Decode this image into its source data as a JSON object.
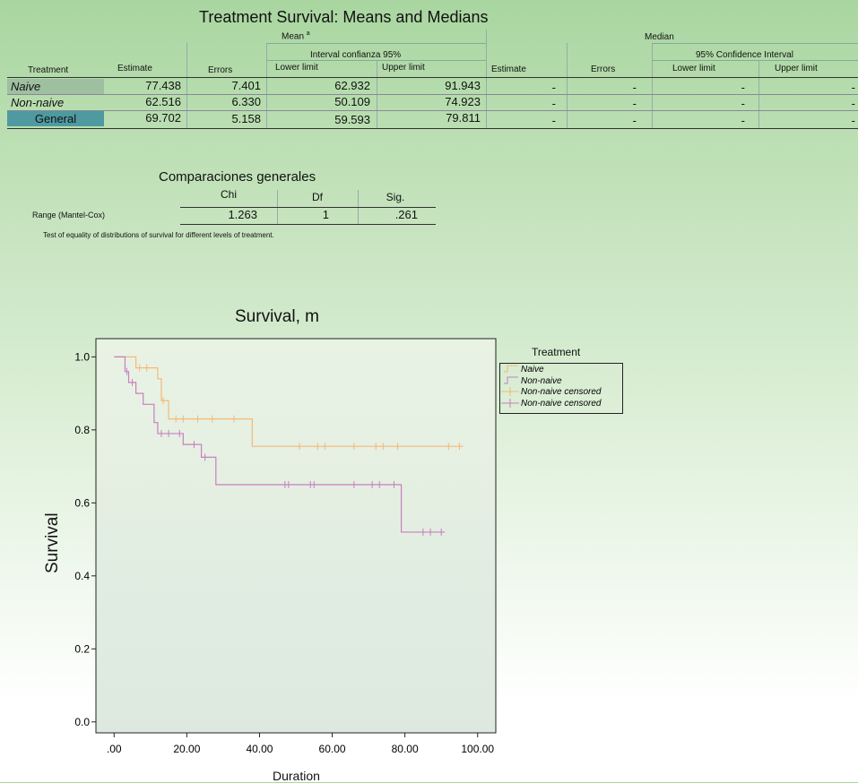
{
  "means_table": {
    "title": "Treatment Survival: Means and Medians",
    "group_mean": "Mean",
    "footnote_mark": "a",
    "group_median": "Median",
    "ci_mean_label": "Interval confianza 95%",
    "ci_median_label": "95% Confidence Interval",
    "columns": [
      "Treatment",
      "Estimate",
      "Errors",
      "Lower limit",
      "Upper limit",
      "Estimate",
      "Errors",
      "Lower limit",
      "Upper limit"
    ],
    "rows": [
      {
        "treatment": "Naive",
        "mean_estimate": "77.438",
        "mean_errors": "7.401",
        "mean_lower": "62.932",
        "mean_upper": "91.943",
        "median_estimate": "-",
        "median_errors": "-",
        "median_lower": "-",
        "median_upper": "-"
      },
      {
        "treatment": "Non-naive",
        "mean_estimate": "62.516",
        "mean_errors": "6.330",
        "mean_lower": "50.109",
        "mean_upper": "74.923",
        "median_estimate": "-",
        "median_errors": "-",
        "median_lower": "-",
        "median_upper": "-"
      },
      {
        "treatment": "General",
        "mean_estimate": "69.702",
        "mean_errors": "5.158",
        "mean_lower": "59.593",
        "mean_upper": "79.811",
        "median_estimate": "-",
        "median_errors": "-",
        "median_lower": "-",
        "median_upper": "-"
      }
    ]
  },
  "comparisons": {
    "title": "Comparaciones generales",
    "columns": [
      "Chi",
      "Df",
      "Sig."
    ],
    "row_label": "Range (Mantel-Cox)",
    "values": [
      "1.263",
      "1",
      ".261"
    ],
    "note": "Test of equality of distributions of survival for different levels of treatment."
  },
  "colors": {
    "naive": "#f5b877",
    "non_naive": "#c77fbf",
    "plot_bg_top": "#e9f3e4",
    "plot_bg_bottom": "#dde9e0",
    "highlight_cell": "#9fbfa1",
    "general_cell": "#4f9aa0"
  },
  "chart_data": {
    "type": "line",
    "subtype": "kaplan-meier step",
    "title": "Survival, m",
    "xlabel": "Duration",
    "ylabel": "Survival",
    "xlim": [
      -5,
      105
    ],
    "ylim": [
      -0.03,
      1.05
    ],
    "xticks": [
      0,
      20,
      40,
      60,
      80,
      100
    ],
    "xtick_labels": [
      ".00",
      "20.00",
      "40.00",
      "60.00",
      "80.00",
      "100.00"
    ],
    "yticks": [
      0.0,
      0.2,
      0.4,
      0.6,
      0.8,
      1.0
    ],
    "ytick_labels": [
      "0.0",
      "0.2",
      "0.4",
      "0.6",
      "0.8",
      "1.0"
    ],
    "grid": false,
    "legend": {
      "title": "Treatment",
      "position": "right",
      "entries": [
        "Naive",
        "Non-naive",
        "Non-naive censored",
        "Non-naive censored"
      ]
    },
    "series": [
      {
        "name": "Naive",
        "steps": [
          [
            0,
            1.0
          ],
          [
            6,
            0.97
          ],
          [
            12,
            0.94
          ],
          [
            13,
            0.88
          ],
          [
            15,
            0.83
          ],
          [
            38,
            0.755
          ],
          [
            96,
            0.755
          ]
        ],
        "censored": [
          [
            7,
            0.97
          ],
          [
            9,
            0.97
          ],
          [
            13.5,
            0.88
          ],
          [
            17,
            0.83
          ],
          [
            19,
            0.83
          ],
          [
            23,
            0.83
          ],
          [
            27,
            0.83
          ],
          [
            33,
            0.83
          ],
          [
            51,
            0.755
          ],
          [
            56,
            0.755
          ],
          [
            58,
            0.755
          ],
          [
            66,
            0.755
          ],
          [
            72,
            0.755
          ],
          [
            74,
            0.755
          ],
          [
            78,
            0.755
          ],
          [
            92,
            0.755
          ],
          [
            95,
            0.755
          ]
        ]
      },
      {
        "name": "Non-naive",
        "steps": [
          [
            0,
            1.0
          ],
          [
            3,
            0.96
          ],
          [
            4,
            0.93
          ],
          [
            6,
            0.9
          ],
          [
            8,
            0.87
          ],
          [
            11,
            0.82
          ],
          [
            12,
            0.79
          ],
          [
            19,
            0.76
          ],
          [
            24,
            0.725
          ],
          [
            28,
            0.65
          ],
          [
            78,
            0.65
          ],
          [
            79,
            0.52
          ],
          [
            91,
            0.52
          ]
        ],
        "censored": [
          [
            3.5,
            0.96
          ],
          [
            5,
            0.93
          ],
          [
            13,
            0.79
          ],
          [
            15,
            0.79
          ],
          [
            18,
            0.79
          ],
          [
            22,
            0.76
          ],
          [
            25,
            0.725
          ],
          [
            47,
            0.65
          ],
          [
            48,
            0.65
          ],
          [
            54,
            0.65
          ],
          [
            55,
            0.65
          ],
          [
            66,
            0.65
          ],
          [
            71,
            0.65
          ],
          [
            73,
            0.65
          ],
          [
            77,
            0.65
          ],
          [
            85,
            0.52
          ],
          [
            87,
            0.52
          ],
          [
            90,
            0.52
          ]
        ]
      }
    ]
  }
}
